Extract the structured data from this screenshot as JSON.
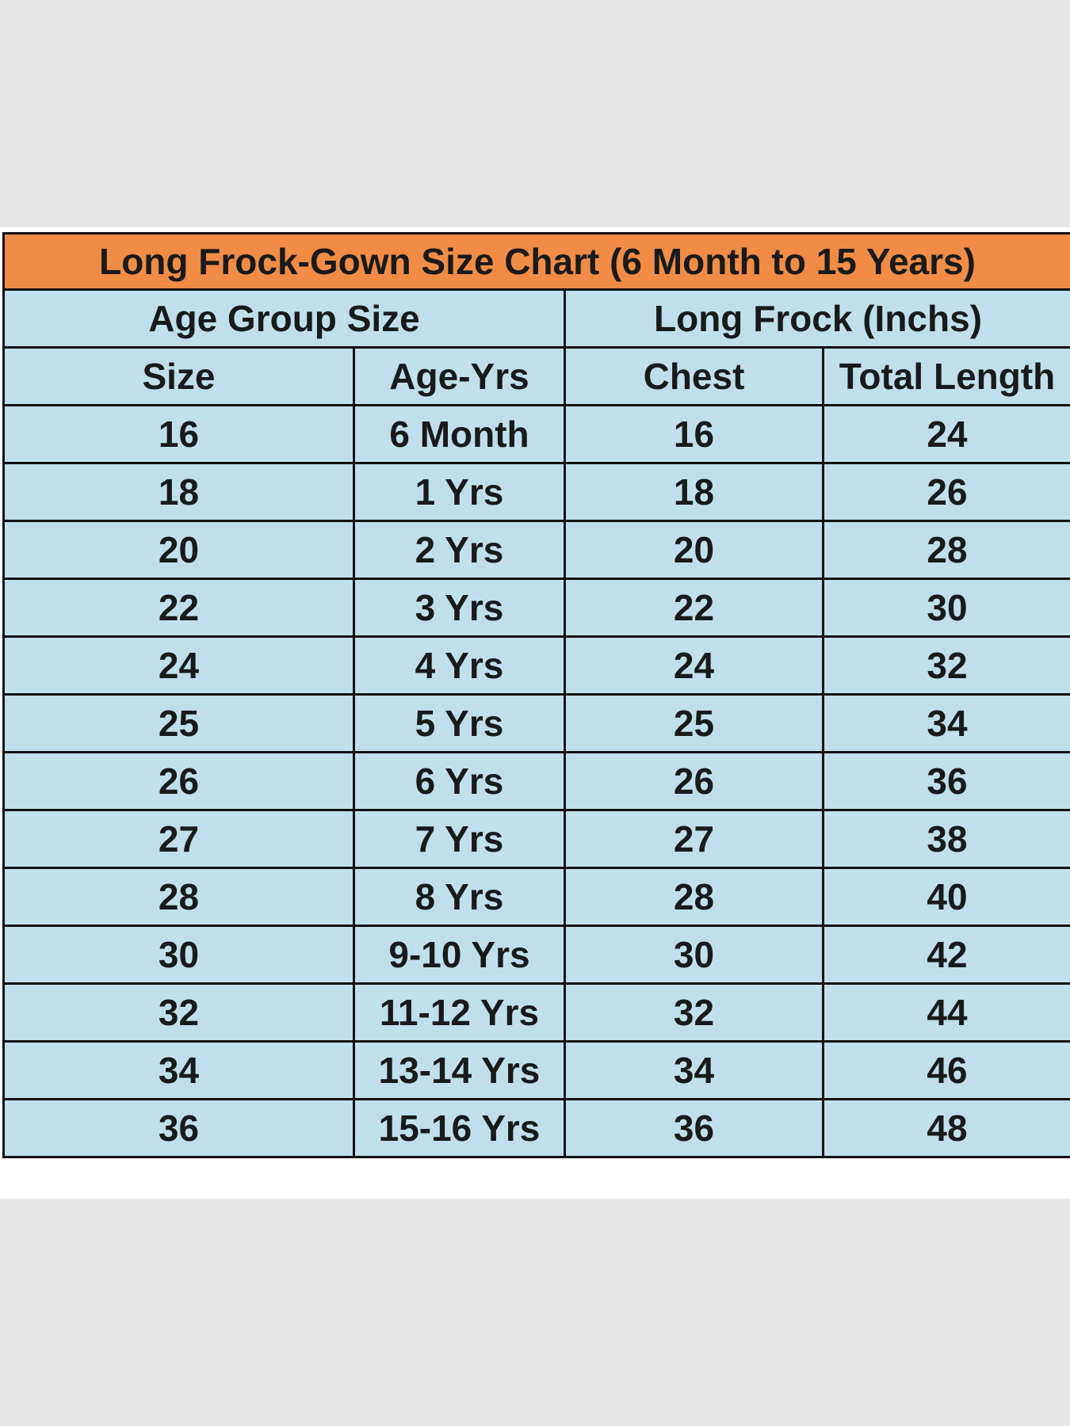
{
  "title": "Long Frock-Gown Size Chart  (6 Month to 15 Years)",
  "group_headers": [
    "Age Group Size",
    "Long Frock (Inchs)"
  ],
  "column_headers": [
    "Size",
    "Age-Yrs",
    "Chest",
    "Total Length"
  ],
  "rows": [
    [
      "16",
      "6 Month",
      "16",
      "24"
    ],
    [
      "18",
      "1 Yrs",
      "18",
      "26"
    ],
    [
      "20",
      "2 Yrs",
      "20",
      "28"
    ],
    [
      "22",
      "3 Yrs",
      "22",
      "30"
    ],
    [
      "24",
      "4 Yrs",
      "24",
      "32"
    ],
    [
      "25",
      "5 Yrs",
      "25",
      "34"
    ],
    [
      "26",
      "6 Yrs",
      "26",
      "36"
    ],
    [
      "27",
      "7 Yrs",
      "27",
      "38"
    ],
    [
      "28",
      "8 Yrs",
      "28",
      "40"
    ],
    [
      "30",
      "9-10 Yrs",
      "30",
      "42"
    ],
    [
      "32",
      "11-12 Yrs",
      "32",
      "44"
    ],
    [
      "34",
      "13-14 Yrs",
      "34",
      "46"
    ],
    [
      "36",
      "15-16 Yrs",
      "36",
      "48"
    ]
  ],
  "colors": {
    "title_bg": "#f08c46",
    "cell_bg": "#bfe0ea",
    "border": "#111111",
    "page_bg": "#e6e6e6"
  }
}
